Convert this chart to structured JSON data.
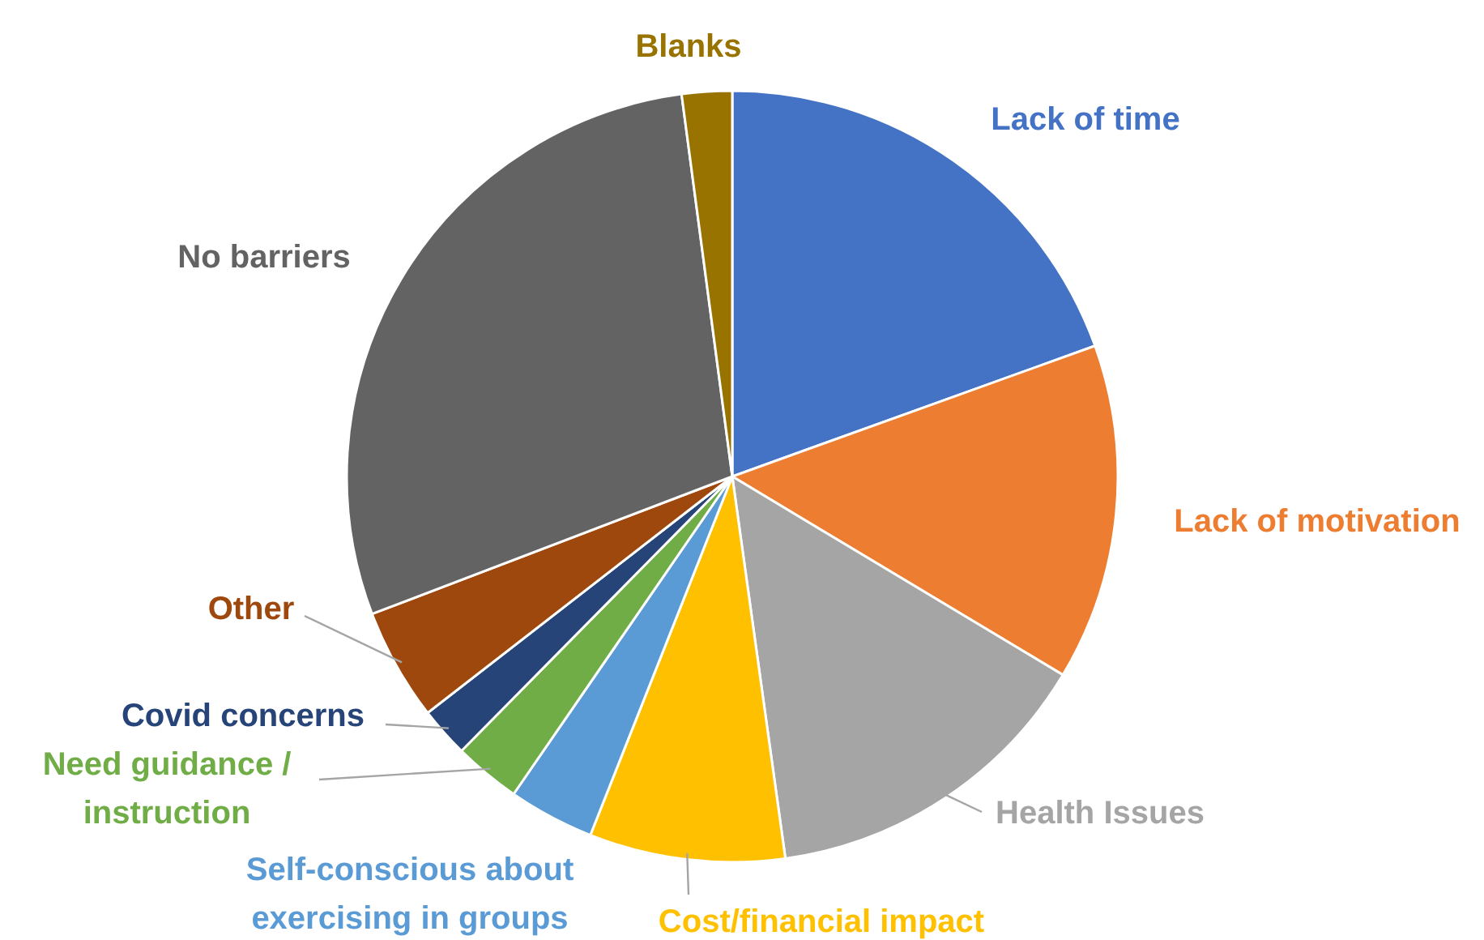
{
  "chart_data": {
    "type": "pie",
    "categories": [
      "Lack of time",
      "Lack of motivation",
      "Health Issues",
      "Cost/financial impact",
      "Self-conscious about exercising in groups",
      "Need guidance / instruction",
      "Covid concerns",
      "Other",
      "No barriers",
      "Blanks"
    ],
    "values": [
      19.5,
      14.1,
      14.2,
      8.2,
      3.6,
      2.8,
      2.1,
      4.7,
      28.7,
      2.1
    ],
    "colors": [
      "#4472c4",
      "#ed7d31",
      "#a5a5a5",
      "#ffc000",
      "#5b9bd5",
      "#70ad47",
      "#264478",
      "#9e480e",
      "#636363",
      "#997300"
    ]
  }
}
